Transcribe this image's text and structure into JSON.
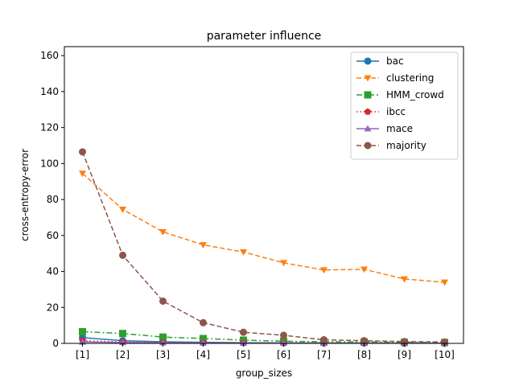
{
  "chart_data": {
    "type": "line",
    "title": "parameter influence",
    "xlabel": "group_sizes",
    "ylabel": "cross-entropy-error",
    "categories": [
      "[1]",
      "[2]",
      "[3]",
      "[4]",
      "[5]",
      "[6]",
      "[7]",
      "[8]",
      "[9]",
      "[10]"
    ],
    "ylim": [
      0,
      165
    ],
    "yticks": [
      0,
      20,
      40,
      60,
      80,
      100,
      120,
      140,
      160
    ],
    "grid": false,
    "legend_position": "top-right",
    "series": [
      {
        "name": "bac",
        "color": "#1f77b4",
        "marker": "circle",
        "dash": "solid",
        "values": [
          3.2,
          1.5,
          0.9,
          0.6,
          0.4,
          0.3,
          0.2,
          0.2,
          0.1,
          0.1
        ]
      },
      {
        "name": "clustering",
        "color": "#ff7f0e",
        "marker": "triangle-down",
        "dash": "dashed",
        "values": [
          94.5,
          74.5,
          62.0,
          54.8,
          50.8,
          44.8,
          40.8,
          41.2,
          35.8,
          34.0
        ]
      },
      {
        "name": "HMM_crowd",
        "color": "#2ca02c",
        "marker": "square",
        "dash": "dashdot",
        "values": [
          6.5,
          5.5,
          3.5,
          2.7,
          1.8,
          1.2,
          0.9,
          0.8,
          0.6,
          0.5
        ]
      },
      {
        "name": "ibcc",
        "color": "#d62728",
        "marker": "pentagon",
        "dash": "dotted",
        "values": [
          1.5,
          0.8,
          0.5,
          0.4,
          0.3,
          0.2,
          0.2,
          0.1,
          0.1,
          0.1
        ]
      },
      {
        "name": "mace",
        "color": "#9467bd",
        "marker": "triangle-up",
        "dash": "solid",
        "values": [
          0.8,
          0.5,
          0.4,
          0.3,
          0.2,
          0.2,
          0.1,
          0.1,
          0.1,
          0.1
        ]
      },
      {
        "name": "majority",
        "color": "#8c564b",
        "marker": "circle",
        "dash": "dashed",
        "values": [
          106.5,
          49.0,
          23.5,
          11.5,
          6.2,
          4.5,
          2.0,
          1.5,
          1.0,
          0.8
        ]
      }
    ]
  }
}
